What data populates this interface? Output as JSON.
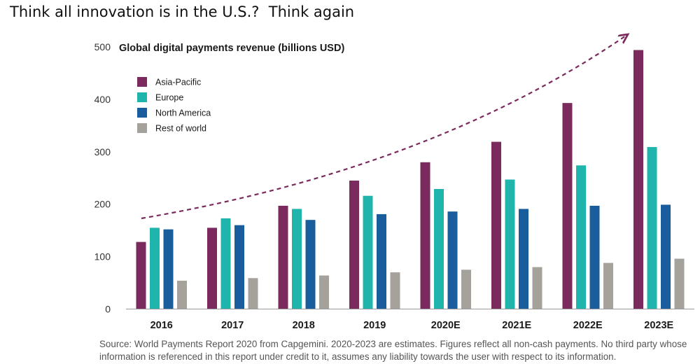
{
  "slide": {
    "title": "Think all innovation is in the U.S.?  Think again"
  },
  "chart_data": {
    "type": "bar",
    "title": "Global digital payments revenue (billions USD)",
    "xlabel": "",
    "ylabel": "",
    "ylim": [
      0,
      500
    ],
    "yticks": [
      0,
      100,
      200,
      300,
      400,
      500
    ],
    "categories": [
      "2016",
      "2017",
      "2018",
      "2019",
      "2020E",
      "2021E",
      "2022E",
      "2023E"
    ],
    "series": [
      {
        "name": "Asia-Pacific",
        "color": "#7a2a5c",
        "values": [
          128,
          155,
          197,
          245,
          280,
          319,
          393,
          494
        ]
      },
      {
        "name": "Europe",
        "color": "#1fb5ad",
        "values": [
          155,
          173,
          191,
          216,
          229,
          247,
          274,
          309
        ]
      },
      {
        "name": "North America",
        "color": "#1a5d9c",
        "values": [
          152,
          160,
          170,
          181,
          186,
          191,
          197,
          199
        ]
      },
      {
        "name": "Rest of world",
        "color": "#a5a19b",
        "values": [
          54,
          59,
          64,
          70,
          75,
          80,
          88,
          96
        ]
      }
    ],
    "grid": false,
    "legend": "top-left",
    "trend_arrow": {
      "style": "dashed",
      "color": "#7a2a5c"
    }
  },
  "footer": {
    "source": "Source: World Payments Report 2020 from Capgemini. 2020-2023 are estimates. Figures reflect all non-cash payments. No third party whose information is referenced in this report under credit to it, assumes any liability towards the user with respect to its information."
  }
}
